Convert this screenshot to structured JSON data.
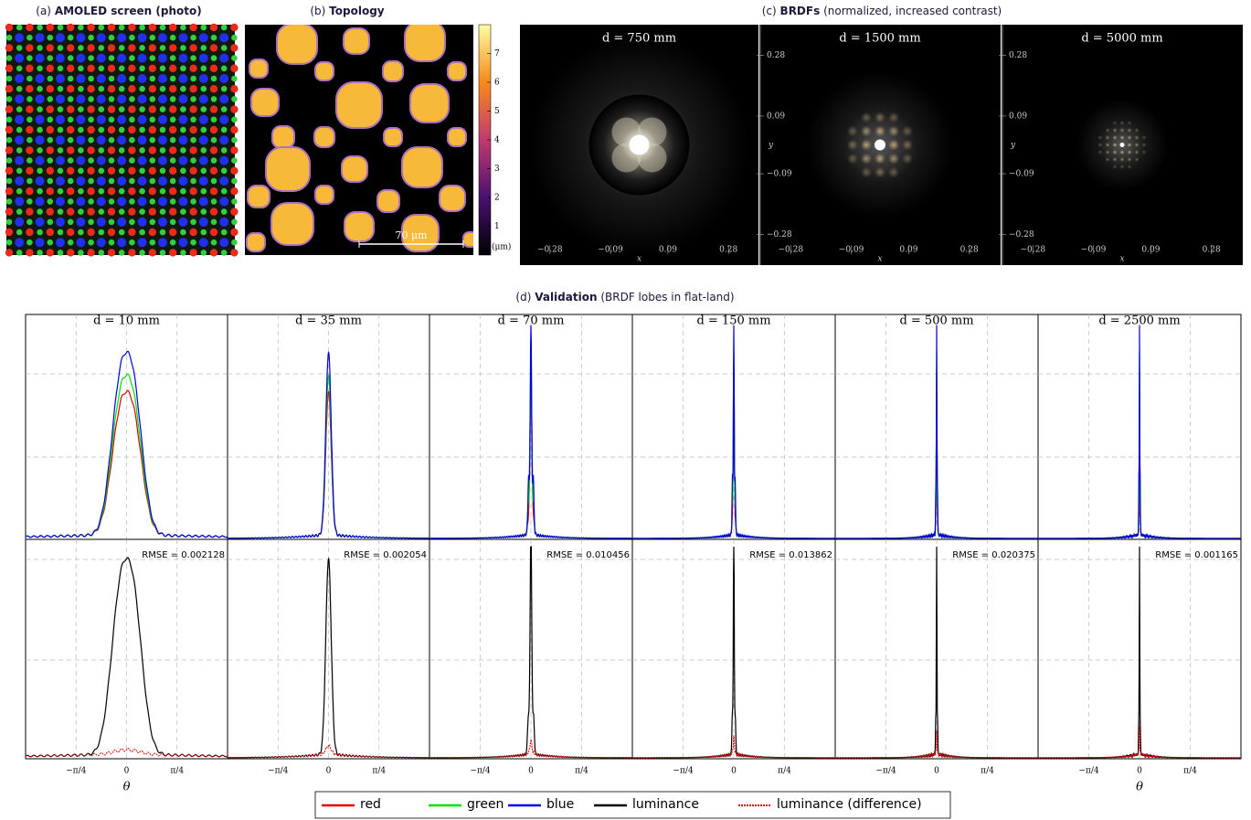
{
  "panel_a": {
    "label": "(a)",
    "title": "AMOLED screen (photo)"
  },
  "panel_b": {
    "label": "(b)",
    "title": "Topology",
    "colorbar_lim": [
      0,
      8
    ],
    "colorbar_ticks": [
      1,
      2,
      3,
      4,
      5,
      6,
      7
    ],
    "colorbar_unit": "(μm)",
    "scale_bar": "70 μm"
  },
  "panel_c": {
    "label": "(c)",
    "title": "BRDFs",
    "subtitle": "(normalized, increased contrast)",
    "views": [
      "d = 750 mm",
      "d = 1500 mm",
      "d = 5000 mm"
    ],
    "lim": [
      -0.375,
      0.375
    ],
    "ticks": [
      {
        "value": -0.28,
        "label": "−0.28"
      },
      {
        "value": -0.09,
        "label": "−0.09"
      },
      0.09,
      0.28
    ],
    "xlabel": "x",
    "ylabel": "y"
  },
  "panel_d": {
    "label": "(d)",
    "title": "Validation",
    "subtitle": "(BRDF lobes in flat-land)",
    "columns": [
      {
        "title": "d = 10 mm",
        "rmse": "RMSE = 0.002128"
      },
      {
        "title": "d = 35 mm",
        "rmse": "RMSE = 0.002054"
      },
      {
        "title": "d = 70 mm",
        "rmse": "RMSE = 0.010456"
      },
      {
        "title": "d = 150 mm",
        "rmse": "RMSE = 0.013862"
      },
      {
        "title": "d = 500 mm",
        "rmse": "RMSE = 0.020375"
      },
      {
        "title": "d = 2500 mm",
        "rmse": "RMSE = 0.001165"
      }
    ],
    "xlim": [
      -1.5708,
      1.5708
    ],
    "xticks": [
      {
        "value": -0.7854,
        "label": "−π/4"
      },
      0,
      {
        "value": 0.7854,
        "label": "π/4"
      }
    ],
    "xlabel": "θ",
    "legend": [
      {
        "name": "red",
        "color": "#e00000",
        "style": "solid"
      },
      {
        "name": "green",
        "color": "#00e000",
        "style": "solid"
      },
      {
        "name": "blue",
        "color": "#0000e0",
        "style": "solid"
      },
      {
        "name": "luminance",
        "color": "#000000",
        "style": "solid"
      },
      {
        "name": "luminance (difference)",
        "color": "#e00000",
        "style": "dashed"
      }
    ]
  }
}
